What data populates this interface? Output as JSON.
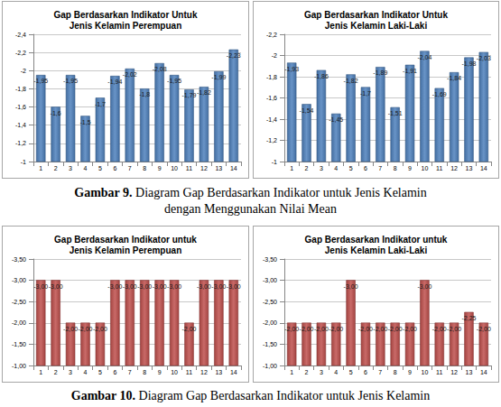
{
  "chart_data": [
    {
      "type": "bar",
      "title": "Gap Berdasarkan Indikator Untuk\nJenis Kelamin Perempuan",
      "categories": [
        "1",
        "2",
        "3",
        "4",
        "5",
        "6",
        "7",
        "8",
        "9",
        "10",
        "11",
        "12",
        "13",
        "14"
      ],
      "values": [
        -1.95,
        -1.6,
        -1.95,
        -1.5,
        -1.7,
        -1.94,
        -2.02,
        -1.8,
        -2.08,
        -1.95,
        -1.79,
        -1.82,
        -1.99,
        -2.23
      ],
      "value_labels": [
        "-1,95",
        "-1,6",
        "-1,95",
        "-1,5",
        "-1,7",
        "-1,94",
        "-2,02",
        "-1,8",
        "-2,08",
        "-1,95",
        "-1,79",
        "-1,82",
        "-1,99",
        "-2,23"
      ],
      "color": "#4f81bd",
      "data_labels": true,
      "grid": true,
      "ylim": [
        -2.4,
        -1
      ],
      "yticks": [
        {
          "value": -2.4,
          "label": "-2,4"
        },
        {
          "value": -2.2,
          "label": "-2,2"
        },
        -2,
        {
          "value": -1.8,
          "label": "-1,8"
        },
        {
          "value": -1.6,
          "label": "-1,6"
        },
        {
          "value": -1.4,
          "label": "-1,4"
        },
        {
          "value": -1.2,
          "label": "-1,2"
        },
        -1
      ]
    },
    {
      "type": "bar",
      "title": "Gap Berdasarkan Indikator Untuk\nJenis Kelamin Laki-Laki",
      "categories": [
        "1",
        "2",
        "3",
        "4",
        "5",
        "6",
        "7",
        "8",
        "9",
        "10",
        "11",
        "12",
        "13",
        "14"
      ],
      "values": [
        -1.93,
        -1.54,
        -1.86,
        -1.45,
        -1.82,
        -1.7,
        -1.89,
        -1.51,
        -1.91,
        -2.04,
        -1.69,
        -1.84,
        -1.98,
        -2.03
      ],
      "value_labels": [
        "-1,93",
        "-1,54",
        "-1,86",
        "-1,45",
        "-1,82",
        "-1,7",
        "-1,89",
        "-1,51",
        "-1,91",
        "-2,04",
        "-1,69",
        "-1,84",
        "-1,98",
        "-2,03"
      ],
      "color": "#4f81bd",
      "data_labels": true,
      "grid": true,
      "ylim": [
        -2.2,
        -1
      ],
      "yticks": [
        {
          "value": -2.2,
          "label": "-2,2"
        },
        -2,
        {
          "value": -1.8,
          "label": "-1,8"
        },
        {
          "value": -1.6,
          "label": "-1,6"
        },
        {
          "value": -1.4,
          "label": "-1,4"
        },
        {
          "value": -1.2,
          "label": "-1,2"
        },
        -1
      ]
    },
    {
      "type": "bar",
      "title": "Gap Berdasarkan Indikator untuk\nJenis Kelamin Perempuan",
      "categories": [
        "1",
        "2",
        "3",
        "4",
        "5",
        "6",
        "7",
        "8",
        "9",
        "10",
        "11",
        "12",
        "13",
        "14"
      ],
      "values": [
        -3,
        -3,
        -2,
        -2,
        -2,
        -3,
        -3,
        -3,
        -3,
        -3,
        -2,
        -3,
        -3,
        -3
      ],
      "value_labels": [
        "-3,00",
        "-3,00",
        "-2,00",
        "-2,00",
        "-2,00",
        "-3,00",
        "-3,00",
        "-3,00",
        "-3,00",
        "-3,00",
        "-2,00",
        "-3,00",
        "-3,00",
        "-3,00"
      ],
      "color": "#c0504d",
      "data_labels": true,
      "grid": true,
      "ylim": [
        -3.5,
        -1
      ],
      "yticks": [
        {
          "value": -3.5,
          "label": "-3,50"
        },
        {
          "value": -3,
          "label": "-3,00"
        },
        {
          "value": -2.5,
          "label": "-2,50"
        },
        {
          "value": -2,
          "label": "-2,00"
        },
        {
          "value": -1.5,
          "label": "-1,50"
        },
        {
          "value": -1,
          "label": "-1,00"
        }
      ]
    },
    {
      "type": "bar",
      "title": "Gap Berdasarkan Indikator untuk\nJenis Kelamin Laki-Laki",
      "categories": [
        "1",
        "2",
        "3",
        "4",
        "5",
        "6",
        "7",
        "8",
        "9",
        "10",
        "11",
        "12",
        "13",
        "14"
      ],
      "values": [
        -2,
        -2,
        -2,
        -2,
        -3,
        -2,
        -2,
        -2,
        -2,
        -3,
        -2,
        -2,
        -2.25,
        -2
      ],
      "value_labels": [
        "-2,00",
        "-2,00",
        "-2,00",
        "-2,00",
        "-3,00",
        "-2,00",
        "-2,00",
        "-2,00",
        "-2,00",
        "-3,00",
        "-2,00",
        "-2,00",
        "-2,25",
        "-2,00"
      ],
      "color": "#c0504d",
      "data_labels": true,
      "grid": true,
      "ylim": [
        -3.5,
        -1
      ],
      "yticks": [
        {
          "value": -3.5,
          "label": "-3,50"
        },
        {
          "value": -3,
          "label": "-3,00"
        },
        {
          "value": -2.5,
          "label": "-2,50"
        },
        {
          "value": -2,
          "label": "-2,00"
        },
        {
          "value": -1.5,
          "label": "-1,50"
        },
        {
          "value": -1,
          "label": "-1,00"
        }
      ]
    }
  ],
  "captions": [
    {
      "label": "Gambar 9.",
      "lines": [
        "Diagram Gap Berdasarkan Indikator untuk Jenis Kelamin",
        "dengan Menggunakan Nilai Mean"
      ]
    },
    {
      "label": "Gambar 10.",
      "lines": [
        "Diagram Gap Berdasarkan Indikator untuk Jenis Kelamin"
      ]
    }
  ]
}
